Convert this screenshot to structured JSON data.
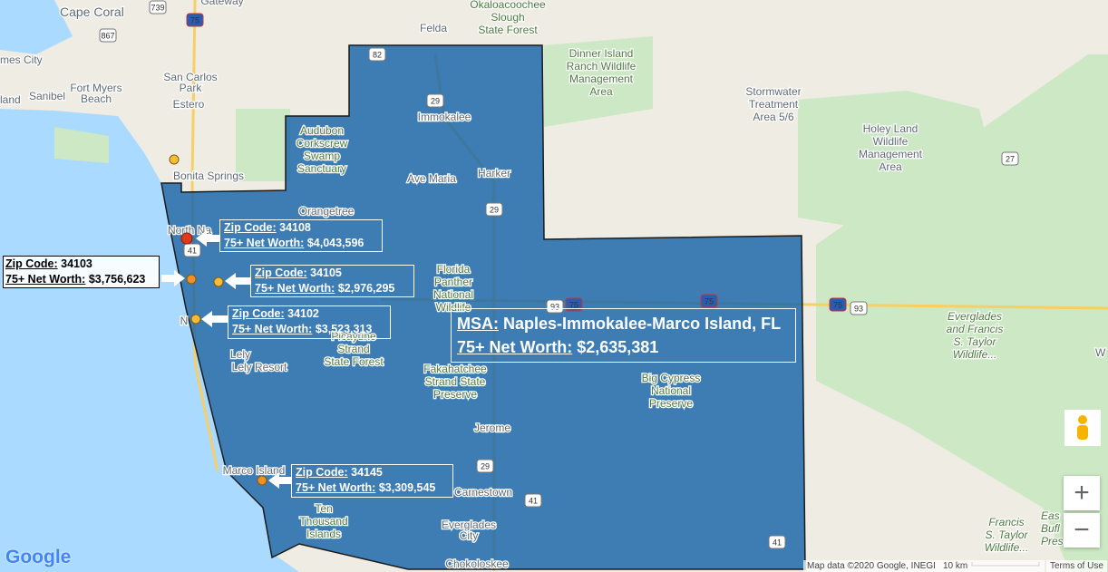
{
  "map": {
    "place_labels": [
      [
        "Cape Coral"
      ],
      [
        "Gateway"
      ],
      [
        "Okaloacoochee",
        "Slough",
        "State Forest"
      ],
      [
        "Felda"
      ],
      [
        "mes City"
      ],
      [
        "Fort Myers",
        "Beach"
      ],
      [
        "land"
      ],
      [
        "Sanibel"
      ],
      [
        "San Carlos",
        "Park"
      ],
      [
        "Estero"
      ],
      [
        "Bonita Springs"
      ],
      [
        "Dinner Island",
        "Ranch Wildlife",
        "Management",
        "Area"
      ],
      [
        "Stormwater",
        "Treatment",
        "Area 5/6"
      ],
      [
        "Holey Land",
        "Wildlife",
        "Management",
        "Area"
      ],
      [
        "Audubon",
        "Corkscrew",
        "Swamp",
        "Sanctuary"
      ],
      [
        "Immokalee"
      ],
      [
        "Harker"
      ],
      [
        "Ave Maria"
      ],
      [
        "Orangetree"
      ],
      [
        "Florida",
        "Panther",
        "National",
        "Wildlife"
      ],
      [
        "North Na"
      ],
      [
        "N"
      ],
      [
        "Lely"
      ],
      [
        "Lely Resort"
      ],
      [
        "Picayune",
        "Strand",
        "State Forest"
      ],
      [
        "Fakahatchee",
        "Strand State",
        "Preserve"
      ],
      [
        "Big Cypress",
        "National",
        "Preserve"
      ],
      [
        "Jerome"
      ],
      [
        "Marco Island"
      ],
      [
        "Carnestown"
      ],
      [
        "Ten",
        "Thousand",
        "Islands"
      ],
      [
        "Everglades",
        "City"
      ],
      [
        "Chokoloskee"
      ],
      [
        "Everglades",
        "and Francis",
        "S. Taylor",
        "Wildlife..."
      ],
      [
        "Francis",
        "S. Taylor",
        "Wildlife..."
      ],
      [
        "W"
      ],
      [
        "Eas",
        "Bufl",
        "Pres"
      ]
    ],
    "road_shields": [
      "75",
      "75",
      "75",
      "75",
      "41",
      "41",
      "41",
      "29",
      "29",
      "29",
      "93",
      "93",
      "82",
      "27",
      "739",
      "867"
    ],
    "callouts": [
      {
        "zip_label": "Zip Code:",
        "zip": "34108",
        "worth_label": "75+ Net Worth:",
        "worth": "$4,043,596"
      },
      {
        "zip_label": "Zip Code:",
        "zip": "34105",
        "worth_label": "75+ Net Worth:",
        "worth": "$2,976,295"
      },
      {
        "zip_label": "Zip Code:",
        "zip": "34102",
        "worth_label": "75+ Net Worth:",
        "worth": "$3,523,313"
      },
      {
        "zip_label": "Zip Code:",
        "zip": "34145",
        "worth_label": "75+ Net Worth:",
        "worth": "$3,309,545"
      },
      {
        "zip_label": "Zip Code:",
        "zip": "34103",
        "worth_label": "75+ Net Worth:",
        "worth": "$3,756,623"
      }
    ],
    "msa": {
      "label": "MSA:",
      "name": "Naples-Immokalee-Marco Island, FL",
      "worth_label": "75+ Net Worth:",
      "worth": "$2,635,381"
    },
    "footer": {
      "logo": "Google",
      "attribution": "Map data ©2020 Google, INEGI",
      "scale": "10 km",
      "terms": "Terms of Use"
    },
    "controls": {
      "zoom_in": "+",
      "zoom_out": "−"
    }
  }
}
